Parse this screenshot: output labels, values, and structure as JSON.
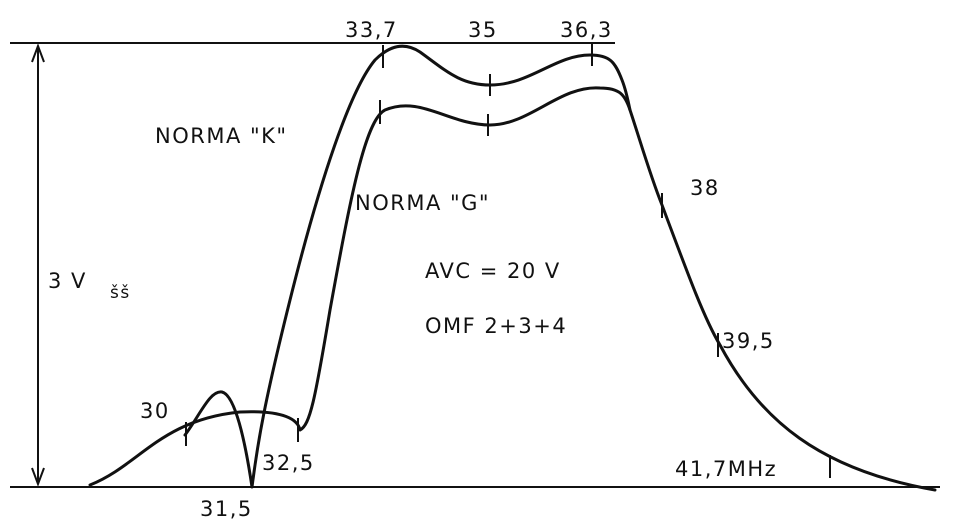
{
  "frequency_labels": [
    "33,7",
    "35",
    "36,3",
    "38",
    "39,5",
    "30",
    "32,5",
    "31,5",
    "41,7MHz"
  ],
  "curve_labels": [
    "NORMA \"K\"",
    "NORMA \"G\""
  ],
  "amplitude": {
    "label": "3 V",
    "subscript": "šš"
  },
  "notes": [
    "AVC = 20 V",
    "OMF 2+3+4"
  ]
}
